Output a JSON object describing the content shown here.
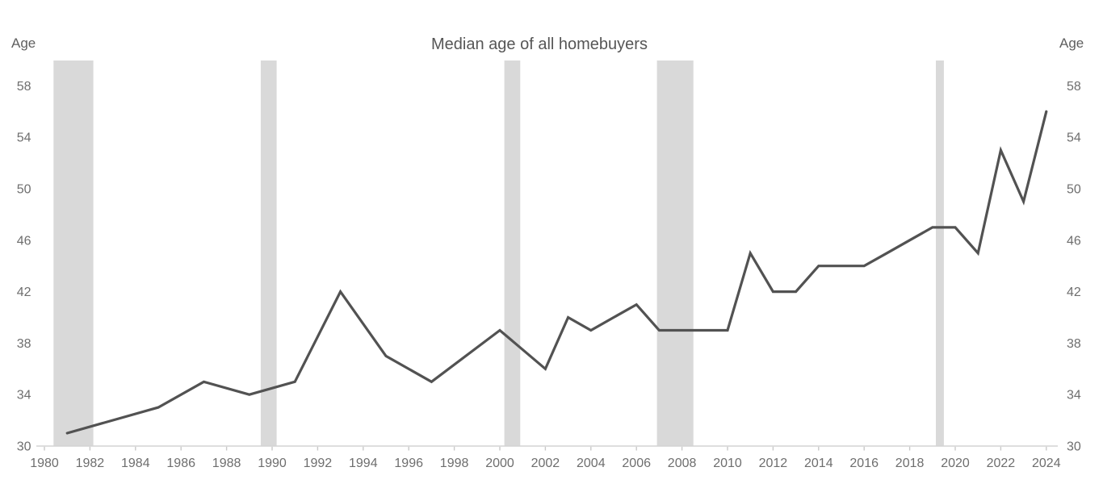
{
  "header": {
    "title": "Median age of all homebuyers"
  },
  "chart_data": {
    "type": "line",
    "title": "Median age of all homebuyers",
    "y_axis_label": "Age",
    "x_ticks": [
      1980,
      1982,
      1984,
      1986,
      1988,
      1990,
      1992,
      1994,
      1996,
      1998,
      2000,
      2002,
      2004,
      2006,
      2008,
      2010,
      2012,
      2014,
      2016,
      2018,
      2020,
      2022,
      2024
    ],
    "y_ticks": [
      30,
      34,
      38,
      42,
      46,
      50,
      54,
      58
    ],
    "xlim": [
      1980,
      2024
    ],
    "ylim": [
      30,
      58
    ],
    "grid": false,
    "legend": false,
    "series": [
      {
        "name": "Median age of all homebuyers",
        "points": [
          [
            1981,
            31
          ],
          [
            1985,
            33
          ],
          [
            1987,
            35
          ],
          [
            1989,
            34
          ],
          [
            1991,
            35
          ],
          [
            1993,
            42
          ],
          [
            1995,
            37
          ],
          [
            1997,
            35
          ],
          [
            2000,
            39
          ],
          [
            2002,
            36
          ],
          [
            2003,
            40
          ],
          [
            2004,
            39
          ],
          [
            2005,
            40
          ],
          [
            2006,
            41
          ],
          [
            2007,
            39
          ],
          [
            2008,
            39
          ],
          [
            2009,
            39
          ],
          [
            2010,
            39
          ],
          [
            2011,
            45
          ],
          [
            2012,
            42
          ],
          [
            2013,
            42
          ],
          [
            2014,
            44
          ],
          [
            2015,
            44
          ],
          [
            2016,
            44
          ],
          [
            2017,
            45
          ],
          [
            2018,
            46
          ],
          [
            2019,
            47
          ],
          [
            2020,
            47
          ],
          [
            2021,
            45
          ],
          [
            2022,
            53
          ],
          [
            2023,
            49
          ],
          [
            2024,
            56
          ]
        ]
      }
    ],
    "recession_bands": [
      [
        1980.4,
        1982.15
      ],
      [
        1989.5,
        1990.2
      ],
      [
        2000.2,
        2000.9
      ],
      [
        2006.9,
        2008.5
      ],
      [
        2019.15,
        2019.5
      ]
    ],
    "colors": {
      "line": "#525252",
      "band": "#d9d9d9",
      "axis_line": "#d4d4d4",
      "tick_mark": "#c9c9c9",
      "tick_label": "#6e6e6e",
      "title": "#565656"
    }
  }
}
